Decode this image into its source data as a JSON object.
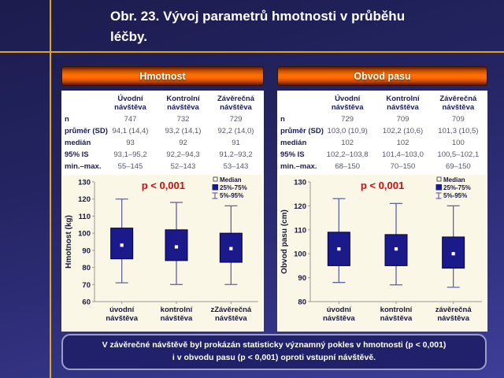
{
  "slide": {
    "title_lines": [
      "Obr. 23. Vývoj parametrů hmotnosti v průběhu",
      "léčby."
    ],
    "footer_lines": [
      "V závěrečné návštěvě byl prokázán statisticky významný pokles v hmotnosti (p < 0,001)",
      "i v obvodu pasu (p < 0,001) oproti vstupní návštěvě."
    ],
    "colors": {
      "accent_gold": "#dfa31d",
      "header_orange": "#ff6a00",
      "box_navy": "#1a1a8a",
      "whisker_slate": "#63639e",
      "p_value_red": "#cf0e0e",
      "chart_cream": "#fbf7e6",
      "footer_navy": "#21216b"
    }
  },
  "panels": [
    {
      "header": "Hmotnost",
      "table": {
        "col_headers": [
          "Úvodní návštěva",
          "Kontrolní návštěva",
          "Závěrečná návštěva"
        ],
        "rows": [
          {
            "label": "n",
            "values": [
              "747",
              "732",
              "729"
            ]
          },
          {
            "label": "průměr (SD)",
            "values": [
              "94,1 (14,4)",
              "93,2 (14,1)",
              "92,2 (14,0)"
            ]
          },
          {
            "label": "medián",
            "values": [
              "93",
              "92",
              "91"
            ]
          },
          {
            "label": "95% IS",
            "values": [
              "93,1–95,2",
              "92,2–94,3",
              "91,2–93,2"
            ]
          },
          {
            "label": "min.–max.",
            "values": [
              "55–145",
              "52–143",
              "53–143"
            ]
          }
        ]
      }
    },
    {
      "header": "Obvod pasu",
      "table": {
        "col_headers": [
          "Úvodní návštěva",
          "Kontrolní návštěva",
          "Závěrečná návštěva"
        ],
        "rows": [
          {
            "label": "n",
            "values": [
              "729",
              "709",
              "709"
            ]
          },
          {
            "label": "průměr (SD)",
            "values": [
              "103,0 (10,9)",
              "102,2 (10,6)",
              "101,3 (10,5)"
            ]
          },
          {
            "label": "medián",
            "values": [
              "102",
              "102",
              "100"
            ]
          },
          {
            "label": "95% IS",
            "values": [
              "102,2–103,8",
              "101,4–103,0",
              "100,5–102,1"
            ]
          },
          {
            "label": "min.–max.",
            "values": [
              "68–150",
              "70–150",
              "69–150"
            ]
          }
        ]
      }
    }
  ],
  "chart_data": [
    {
      "type": "boxplot",
      "title": "Hmotnost",
      "annotation": "p < 0,001",
      "ylabel": "Hmotnost (kg)",
      "ylim": [
        60,
        130
      ],
      "ytick_step": 10,
      "grid": false,
      "legend": [
        "Median",
        "25%-75%",
        "5%-95%"
      ],
      "legend_position": "top-right",
      "categories": [
        "úvodní návštěva",
        "kontrolní návštěva",
        "zZávěrečná návštěva"
      ],
      "series": [
        {
          "name": "úvodní návštěva",
          "whisker_low": 71,
          "q1": 85,
          "median": 93,
          "q3": 103,
          "whisker_high": 120
        },
        {
          "name": "kontrolní návštěva",
          "whisker_low": 70,
          "q1": 84,
          "median": 92,
          "q3": 102,
          "whisker_high": 118
        },
        {
          "name": "zZávěrečná návštěva",
          "whisker_low": 70,
          "q1": 83,
          "median": 91,
          "q3": 100,
          "whisker_high": 116
        }
      ]
    },
    {
      "type": "boxplot",
      "title": "Obvod pasu",
      "annotation": "p < 0,001",
      "ylabel": "Obvod pasu (cm)",
      "ylim": [
        80,
        130
      ],
      "ytick_step": 10,
      "grid": false,
      "legend": [
        "Median",
        "25%-75%",
        "5%-95%"
      ],
      "legend_position": "top-right",
      "categories": [
        "úvodní návštěva",
        "kontrolní návštěva",
        "závěrečná návštěva"
      ],
      "series": [
        {
          "name": "úvodní návštěva",
          "whisker_low": 88,
          "q1": 95,
          "median": 102,
          "q3": 109,
          "whisker_high": 123
        },
        {
          "name": "kontrolní návštěva",
          "whisker_low": 87,
          "q1": 95,
          "median": 102,
          "q3": 108,
          "whisker_high": 121
        },
        {
          "name": "závěrečná návštěva",
          "whisker_low": 86,
          "q1": 94,
          "median": 100,
          "q3": 107,
          "whisker_high": 120
        }
      ]
    }
  ]
}
